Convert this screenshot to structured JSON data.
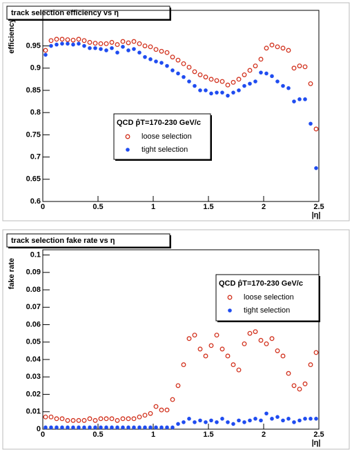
{
  "chart_data": [
    {
      "type": "scatter",
      "title": "track selection efficiency vs η",
      "x_label": "|η|",
      "y_label": "efficiency",
      "legend_title": "QCD p̂T=170-230 GeV/c",
      "legend": "center",
      "x": [
        0.025,
        0.075,
        0.125,
        0.175,
        0.225,
        0.275,
        0.325,
        0.375,
        0.425,
        0.475,
        0.525,
        0.575,
        0.625,
        0.675,
        0.725,
        0.775,
        0.825,
        0.875,
        0.925,
        0.975,
        1.025,
        1.075,
        1.125,
        1.175,
        1.225,
        1.275,
        1.325,
        1.375,
        1.425,
        1.475,
        1.525,
        1.575,
        1.625,
        1.675,
        1.725,
        1.775,
        1.825,
        1.875,
        1.925,
        1.975,
        2.025,
        2.075,
        2.125,
        2.175,
        2.225,
        2.275,
        2.325,
        2.375,
        2.425,
        2.475
      ],
      "series": [
        {
          "name": "loose selection",
          "color": "#d2321e",
          "marker": "open",
          "values": [
            0.94,
            0.962,
            0.965,
            0.965,
            0.964,
            0.963,
            0.965,
            0.962,
            0.958,
            0.956,
            0.955,
            0.955,
            0.958,
            0.953,
            0.96,
            0.957,
            0.96,
            0.955,
            0.95,
            0.948,
            0.942,
            0.938,
            0.935,
            0.925,
            0.918,
            0.91,
            0.902,
            0.892,
            0.885,
            0.88,
            0.875,
            0.872,
            0.87,
            0.862,
            0.868,
            0.875,
            0.885,
            0.895,
            0.905,
            0.92,
            0.945,
            0.952,
            0.948,
            0.945,
            0.94,
            0.9,
            0.905,
            0.903,
            0.865,
            0.763
          ]
        },
        {
          "name": "tight selection",
          "color": "#1f4cf0",
          "marker": "filled",
          "values": [
            0.93,
            0.95,
            0.953,
            0.955,
            0.955,
            0.953,
            0.955,
            0.95,
            0.945,
            0.945,
            0.943,
            0.94,
            0.945,
            0.935,
            0.948,
            0.94,
            0.943,
            0.935,
            0.925,
            0.92,
            0.915,
            0.912,
            0.905,
            0.895,
            0.888,
            0.88,
            0.87,
            0.86,
            0.85,
            0.85,
            0.843,
            0.845,
            0.845,
            0.838,
            0.845,
            0.85,
            0.86,
            0.865,
            0.87,
            0.89,
            0.888,
            0.882,
            0.87,
            0.86,
            0.855,
            0.825,
            0.83,
            0.83,
            0.775,
            0.675
          ]
        }
      ],
      "xlim": [
        0,
        2.5
      ],
      "xticks": [
        0,
        0.5,
        1,
        1.5,
        2,
        2.5
      ],
      "ylim": [
        0.6,
        1.03
      ],
      "yticks": [
        0.6,
        0.65,
        0.7,
        0.75,
        0.8,
        0.85,
        0.9,
        0.95
      ],
      "grid": false
    },
    {
      "type": "scatter",
      "title": "track selection fake rate vs η",
      "x_label": "|η|",
      "y_label": "fake rate",
      "legend_title": "QCD p̂T=170-230 GeV/c",
      "legend": "upper right",
      "x": [
        0.025,
        0.075,
        0.125,
        0.175,
        0.225,
        0.275,
        0.325,
        0.375,
        0.425,
        0.475,
        0.525,
        0.575,
        0.625,
        0.675,
        0.725,
        0.775,
        0.825,
        0.875,
        0.925,
        0.975,
        1.025,
        1.075,
        1.125,
        1.175,
        1.225,
        1.275,
        1.325,
        1.375,
        1.425,
        1.475,
        1.525,
        1.575,
        1.625,
        1.675,
        1.725,
        1.775,
        1.825,
        1.875,
        1.925,
        1.975,
        2.025,
        2.075,
        2.125,
        2.175,
        2.225,
        2.275,
        2.325,
        2.375,
        2.425,
        2.475
      ],
      "series": [
        {
          "name": "loose selection",
          "color": "#d2321e",
          "marker": "open",
          "values": [
            0.007,
            0.007,
            0.006,
            0.006,
            0.005,
            0.005,
            0.005,
            0.005,
            0.006,
            0.005,
            0.006,
            0.006,
            0.006,
            0.005,
            0.006,
            0.006,
            0.006,
            0.007,
            0.008,
            0.009,
            0.013,
            0.011,
            0.011,
            0.017,
            0.025,
            0.037,
            0.052,
            0.054,
            0.046,
            0.042,
            0.048,
            0.054,
            0.046,
            0.042,
            0.037,
            0.034,
            0.049,
            0.055,
            0.056,
            0.051,
            0.049,
            0.052,
            0.045,
            0.042,
            0.032,
            0.025,
            0.023,
            0.026,
            0.037,
            0.044
          ]
        },
        {
          "name": "tight selection",
          "color": "#1f4cf0",
          "marker": "filled",
          "values": [
            0.001,
            0.001,
            0.001,
            0.001,
            0.001,
            0.001,
            0.001,
            0.001,
            0.001,
            0.001,
            0.001,
            0.001,
            0.001,
            0.001,
            0.001,
            0.001,
            0.001,
            0.001,
            0.001,
            0.001,
            0.001,
            0.001,
            0.001,
            0.001,
            0.003,
            0.004,
            0.006,
            0.004,
            0.005,
            0.004,
            0.005,
            0.004,
            0.006,
            0.004,
            0.003,
            0.005,
            0.004,
            0.005,
            0.006,
            0.005,
            0.009,
            0.006,
            0.007,
            0.005,
            0.006,
            0.004,
            0.005,
            0.006,
            0.006,
            0.006
          ]
        }
      ],
      "xlim": [
        0,
        2.5
      ],
      "xticks": [
        0,
        0.5,
        1,
        1.5,
        2,
        2.5
      ],
      "ylim": [
        0,
        0.103
      ],
      "yticks": [
        0,
        0.01,
        0.02,
        0.03,
        0.04,
        0.05,
        0.06,
        0.07,
        0.08,
        0.09,
        0.1
      ],
      "grid": false
    }
  ]
}
